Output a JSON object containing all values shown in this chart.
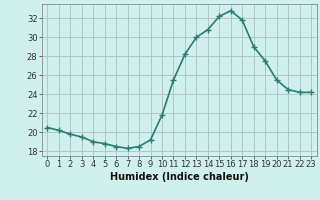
{
  "x": [
    0,
    1,
    2,
    3,
    4,
    5,
    6,
    7,
    8,
    9,
    10,
    11,
    12,
    13,
    14,
    15,
    16,
    17,
    18,
    19,
    20,
    21,
    22,
    23
  ],
  "y": [
    20.5,
    20.2,
    19.8,
    19.5,
    19.0,
    18.8,
    18.5,
    18.3,
    18.5,
    19.2,
    21.8,
    25.5,
    28.2,
    30.0,
    30.8,
    32.2,
    32.8,
    31.8,
    29.0,
    27.5,
    25.5,
    24.5,
    24.2,
    24.2
  ],
  "xlabel": "Humidex (Indice chaleur)",
  "ylim": [
    17.5,
    33.5
  ],
  "xlim": [
    -0.5,
    23.5
  ],
  "yticks": [
    18,
    20,
    22,
    24,
    26,
    28,
    30,
    32
  ],
  "xticks": [
    0,
    1,
    2,
    3,
    4,
    5,
    6,
    7,
    8,
    9,
    10,
    11,
    12,
    13,
    14,
    15,
    16,
    17,
    18,
    19,
    20,
    21,
    22,
    23
  ],
  "line_color": "#2d7c72",
  "marker": "+",
  "marker_size": 4,
  "bg_color": "#cff0ec",
  "grid_color": "#b0c8c4",
  "axis_color": "#888888",
  "tick_color": "#333333",
  "font_color": "#111111",
  "xlabel_fontsize": 7,
  "tick_fontsize": 6,
  "line_width": 1.2
}
